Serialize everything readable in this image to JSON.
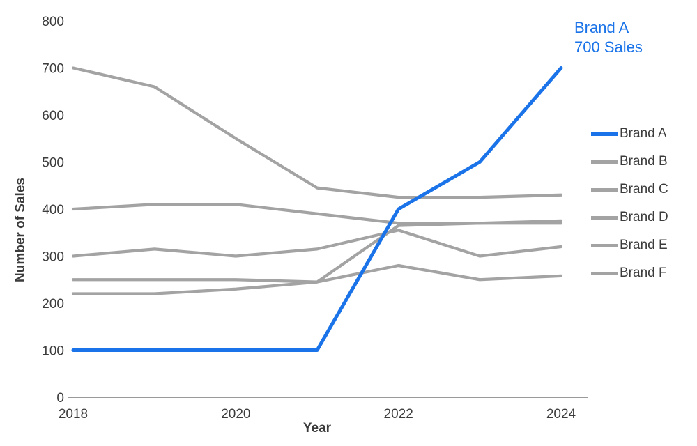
{
  "chart_data": {
    "type": "line",
    "title": "",
    "xlabel": "Year",
    "ylabel": "Number of Sales",
    "x": [
      2018,
      2019,
      2020,
      2021,
      2022,
      2023,
      2024
    ],
    "x_ticks": [
      2018,
      2020,
      2022,
      2024
    ],
    "ylim": [
      0,
      800
    ],
    "y_ticks": [
      0,
      100,
      200,
      300,
      400,
      500,
      600,
      700,
      800
    ],
    "grid": false,
    "legend_position": "right",
    "series": [
      {
        "name": "Brand A",
        "color": "#1a73e8",
        "values": [
          100,
          100,
          100,
          100,
          400,
          500,
          700
        ]
      },
      {
        "name": "Brand B",
        "color": "#a3a3a3",
        "values": [
          700,
          660,
          550,
          445,
          425,
          425,
          430
        ]
      },
      {
        "name": "Brand C",
        "color": "#a3a3a3",
        "values": [
          400,
          410,
          410,
          390,
          370,
          370,
          375
        ]
      },
      {
        "name": "Brand D",
        "color": "#a3a3a3",
        "values": [
          300,
          315,
          300,
          315,
          355,
          300,
          320
        ]
      },
      {
        "name": "Brand E",
        "color": "#a3a3a3",
        "values": [
          250,
          250,
          250,
          245,
          365,
          370,
          370
        ]
      },
      {
        "name": "Brand F",
        "color": "#a3a3a3",
        "values": [
          220,
          220,
          230,
          245,
          280,
          250,
          258
        ]
      }
    ],
    "annotation": {
      "line1": "Brand A",
      "line2": "700 Sales",
      "color": "#1a73e8"
    },
    "axis_color": "#9a9a9a",
    "tick_color": "#3c3c3c"
  }
}
